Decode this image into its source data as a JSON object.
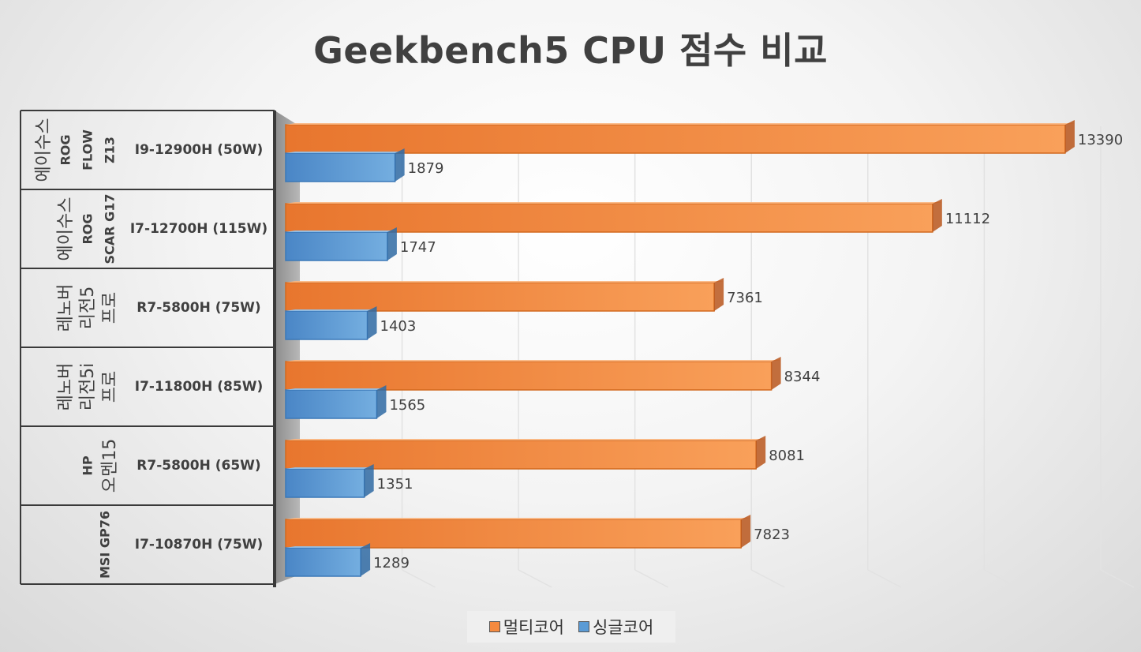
{
  "chart_data": {
    "type": "bar",
    "orientation": "horizontal",
    "title": "Geekbench5 CPU 점수 비교",
    "categories": [
      {
        "group": [
          "에이수스",
          "ROG",
          "FLOW",
          "Z13"
        ],
        "label": "I9-12900H (50W)"
      },
      {
        "group": [
          "에이수스",
          "ROG",
          "SCAR G17"
        ],
        "label": "I7-12700H (115W)"
      },
      {
        "group": [
          "레노버",
          "리전5",
          "프로"
        ],
        "label": "R7-5800H (75W)"
      },
      {
        "group": [
          "레노버",
          "리전5i",
          "프로"
        ],
        "label": "I7-11800H (85W)"
      },
      {
        "group": [
          "HP",
          "오멘15"
        ],
        "label": "R7-5800H (65W)"
      },
      {
        "group": [
          "MSI GP76"
        ],
        "label": "I7-10870H (75W)"
      }
    ],
    "series": [
      {
        "name": "멀티코어",
        "color": "#f58a3f",
        "values": [
          13390,
          11112,
          7361,
          8344,
          8081,
          7823
        ]
      },
      {
        "name": "싱글코어",
        "color": "#5b9bd5",
        "values": [
          1879,
          1747,
          1403,
          1565,
          1351,
          1289
        ]
      }
    ],
    "xlim": [
      0,
      14000
    ],
    "grid": true,
    "legend_position": "bottom"
  }
}
